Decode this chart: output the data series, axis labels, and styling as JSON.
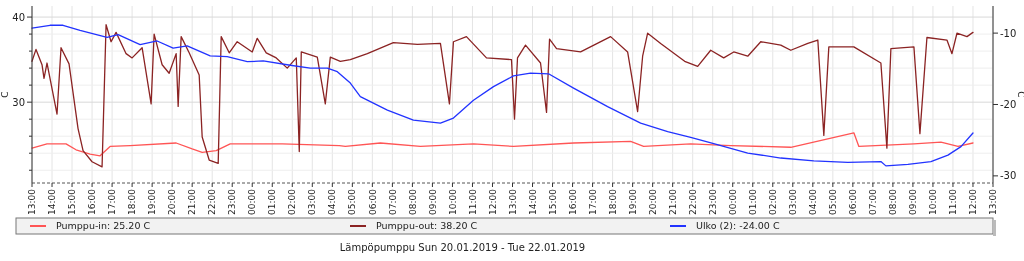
{
  "chart_data": {
    "type": "line",
    "title": "Lämpöpumppu Sun 20.01.2019 - Tue 22.01.2019",
    "ylabel": "C",
    "y2label": "C",
    "xlim": [
      "2019-01-20T13:00",
      "2019-01-22T13:00"
    ],
    "xticks": [
      {
        "value": "2019-01-20T13:00",
        "label": "13:00"
      },
      {
        "value": "2019-01-20T14:00",
        "label": "14:00"
      },
      {
        "value": "2019-01-20T15:00",
        "label": "15:00"
      },
      {
        "value": "2019-01-20T16:00",
        "label": "16:00"
      },
      {
        "value": "2019-01-20T17:00",
        "label": "17:00"
      },
      {
        "value": "2019-01-20T18:00",
        "label": "18:00"
      },
      {
        "value": "2019-01-20T19:00",
        "label": "19:00"
      },
      {
        "value": "2019-01-20T20:00",
        "label": "20:00"
      },
      {
        "value": "2019-01-20T21:00",
        "label": "21:00"
      },
      {
        "value": "2019-01-20T22:00",
        "label": "22:00"
      },
      {
        "value": "2019-01-20T23:00",
        "label": "23:00"
      },
      {
        "value": "2019-01-21T00:00",
        "label": "00:00"
      },
      {
        "value": "2019-01-21T01:00",
        "label": "01:00"
      },
      {
        "value": "2019-01-21T02:00",
        "label": "02:00"
      },
      {
        "value": "2019-01-21T03:00",
        "label": "03:00"
      },
      {
        "value": "2019-01-21T04:00",
        "label": "04:00"
      },
      {
        "value": "2019-01-21T05:00",
        "label": "05:00"
      },
      {
        "value": "2019-01-21T06:00",
        "label": "06:00"
      },
      {
        "value": "2019-01-21T07:00",
        "label": "07:00"
      },
      {
        "value": "2019-01-21T08:00",
        "label": "08:00"
      },
      {
        "value": "2019-01-21T09:00",
        "label": "09:00"
      },
      {
        "value": "2019-01-21T10:00",
        "label": "10:00"
      },
      {
        "value": "2019-01-21T11:00",
        "label": "11:00"
      },
      {
        "value": "2019-01-21T12:00",
        "label": "12:00"
      },
      {
        "value": "2019-01-21T13:00",
        "label": "13:00"
      },
      {
        "value": "2019-01-21T14:00",
        "label": "14:00"
      },
      {
        "value": "2019-01-21T15:00",
        "label": "15:00"
      },
      {
        "value": "2019-01-21T16:00",
        "label": "16:00"
      },
      {
        "value": "2019-01-21T17:00",
        "label": "17:00"
      },
      {
        "value": "2019-01-21T18:00",
        "label": "18:00"
      },
      {
        "value": "2019-01-21T19:00",
        "label": "19:00"
      },
      {
        "value": "2019-01-21T20:00",
        "label": "20:00"
      },
      {
        "value": "2019-01-21T21:00",
        "label": "21:00"
      },
      {
        "value": "2019-01-21T22:00",
        "label": "22:00"
      },
      {
        "value": "2019-01-21T23:00",
        "label": "23:00"
      },
      {
        "value": "2019-01-22T00:00",
        "label": "00:00"
      },
      {
        "value": "2019-01-22T01:00",
        "label": "01:00"
      },
      {
        "value": "2019-01-22T02:00",
        "label": "02:00"
      },
      {
        "value": "2019-01-22T03:00",
        "label": "03:00"
      },
      {
        "value": "2019-01-22T04:00",
        "label": "04:00"
      },
      {
        "value": "2019-01-22T05:00",
        "label": "05:00"
      },
      {
        "value": "2019-01-22T06:00",
        "label": "06:00"
      },
      {
        "value": "2019-01-22T07:00",
        "label": "07:00"
      },
      {
        "value": "2019-01-22T08:00",
        "label": "08:00"
      },
      {
        "value": "2019-01-22T09:00",
        "label": "09:00"
      },
      {
        "value": "2019-01-22T10:00",
        "label": "10:00"
      },
      {
        "value": "2019-01-22T11:00",
        "label": "11:00"
      },
      {
        "value": "2019-01-22T12:00",
        "label": "12:00"
      },
      {
        "value": "2019-01-22T13:00",
        "label": "13:00"
      }
    ],
    "ylim": [
      20.5,
      41.3
    ],
    "yticks": [
      {
        "value": 22,
        "label": null
      },
      {
        "value": 24,
        "label": null
      },
      {
        "value": 26,
        "label": null
      },
      {
        "value": 28,
        "label": null
      },
      30,
      {
        "value": 32,
        "label": null
      },
      {
        "value": 34,
        "label": null
      },
      {
        "value": 36,
        "label": null
      },
      {
        "value": 38,
        "label": null
      },
      40
    ],
    "y2lim": [
      -31,
      -6.2
    ],
    "y2ticks": [
      -10,
      -20,
      -30
    ],
    "grid": true,
    "legend": "bottom",
    "line_style": "solid",
    "marker": "none",
    "series": [
      {
        "name": "Pumppu-in: 25.20 C",
        "color": "#ff5555",
        "x": [
          "2019-01-20T13:00",
          "2019-01-20T13:45",
          "2019-01-20T14:42",
          "2019-01-20T15:12",
          "2019-01-20T15:54",
          "2019-01-20T16:24",
          "2019-01-20T16:54",
          "2019-01-20T17:54",
          "2019-01-20T20:12",
          "2019-01-20T21:00",
          "2019-01-20T21:30",
          "2019-01-20T22:12",
          "2019-01-20T22:54",
          "2019-01-21T01:30",
          "2019-01-21T04:21",
          "2019-01-21T04:39",
          "2019-01-21T06:24",
          "2019-01-21T08:24",
          "2019-01-21T11:03",
          "2019-01-21T13:03",
          "2019-01-21T16:03",
          "2019-01-21T18:54",
          "2019-01-21T19:33",
          "2019-01-21T21:54",
          "2019-01-21T23:54",
          "2019-01-22T02:54",
          "2019-01-22T06:03",
          "2019-01-22T06:18",
          "2019-01-22T09:03",
          "2019-01-22T10:24",
          "2019-01-22T11:15",
          "2019-01-22T12:00"
        ],
        "values": [
          24.6,
          25.1,
          25.1,
          24.4,
          23.9,
          23.7,
          24.8,
          24.9,
          25.2,
          24.5,
          24.1,
          24.3,
          25.1,
          25.1,
          24.9,
          24.8,
          25.2,
          24.8,
          25.1,
          24.8,
          25.2,
          25.4,
          24.8,
          25.1,
          24.9,
          24.7,
          26.4,
          24.8,
          25.1,
          25.3,
          24.8,
          25.2
        ]
      },
      {
        "name": "Pumppu-out: 38.20 C",
        "color": "#8b2323",
        "x": [
          "2019-01-20T13:00",
          "2019-01-20T13:12",
          "2019-01-20T13:30",
          "2019-01-20T13:36",
          "2019-01-20T13:45",
          "2019-01-20T14:15",
          "2019-01-20T14:27",
          "2019-01-20T14:51",
          "2019-01-20T15:18",
          "2019-01-20T15:33",
          "2019-01-20T16:00",
          "2019-01-20T16:30",
          "2019-01-20T16:42",
          "2019-01-20T16:57",
          "2019-01-20T17:12",
          "2019-01-20T17:42",
          "2019-01-20T18:00",
          "2019-01-20T18:30",
          "2019-01-20T18:57",
          "2019-01-20T19:06",
          "2019-01-20T19:30",
          "2019-01-20T19:51",
          "2019-01-20T20:12",
          "2019-01-20T20:18",
          "2019-01-20T20:27",
          "2019-01-20T20:51",
          "2019-01-20T21:21",
          "2019-01-20T21:30",
          "2019-01-20T21:51",
          "2019-01-20T22:18",
          "2019-01-20T22:27",
          "2019-01-20T22:51",
          "2019-01-20T23:15",
          "2019-01-21T00:00",
          "2019-01-21T00:15",
          "2019-01-21T00:42",
          "2019-01-21T01:12",
          "2019-01-21T01:45",
          "2019-01-21T02:12",
          "2019-01-21T02:21",
          "2019-01-21T02:27",
          "2019-01-21T03:15",
          "2019-01-21T03:39",
          "2019-01-21T03:54",
          "2019-01-21T04:24",
          "2019-01-21T04:54",
          "2019-01-21T05:45",
          "2019-01-21T07:03",
          "2019-01-21T08:15",
          "2019-01-21T09:24",
          "2019-01-21T09:51",
          "2019-01-21T10:03",
          "2019-01-21T10:42",
          "2019-01-21T11:42",
          "2019-01-21T12:57",
          "2019-01-21T13:06",
          "2019-01-21T13:15",
          "2019-01-21T13:39",
          "2019-01-21T14:24",
          "2019-01-21T14:42",
          "2019-01-21T14:51",
          "2019-01-21T15:12",
          "2019-01-21T16:24",
          "2019-01-21T17:54",
          "2019-01-21T18:45",
          "2019-01-21T19:15",
          "2019-01-21T19:30",
          "2019-01-21T19:45",
          "2019-01-21T20:24",
          "2019-01-21T21:36",
          "2019-01-21T22:15",
          "2019-01-21T22:54",
          "2019-01-21T23:33",
          "2019-01-22T00:03",
          "2019-01-22T00:45",
          "2019-01-22T01:24",
          "2019-01-22T02:24",
          "2019-01-22T02:54",
          "2019-01-22T03:45",
          "2019-01-22T04:15",
          "2019-01-22T04:33",
          "2019-01-22T04:48",
          "2019-01-22T06:03",
          "2019-01-22T07:24",
          "2019-01-22T07:42",
          "2019-01-22T07:54",
          "2019-01-22T09:03",
          "2019-01-22T09:21",
          "2019-01-22T09:42",
          "2019-01-22T10:42",
          "2019-01-22T10:57",
          "2019-01-22T11:12",
          "2019-01-22T11:42",
          "2019-01-22T12:00"
        ],
        "values": [
          34.8,
          36.2,
          34.4,
          32.8,
          34.6,
          28.6,
          36.4,
          34.5,
          26.9,
          24.3,
          23.0,
          22.4,
          39.1,
          37.1,
          38.2,
          35.7,
          35.2,
          36.4,
          29.8,
          38.0,
          34.4,
          33.4,
          35.7,
          29.5,
          37.7,
          35.8,
          33.2,
          25.9,
          23.2,
          22.8,
          37.7,
          35.8,
          37.1,
          35.9,
          37.5,
          35.8,
          35.2,
          34.0,
          35.2,
          24.2,
          35.9,
          35.3,
          29.8,
          35.3,
          34.8,
          35.0,
          35.7,
          37.0,
          36.8,
          36.9,
          29.8,
          37.1,
          37.7,
          35.2,
          35.0,
          28.0,
          35.2,
          36.7,
          34.6,
          28.8,
          37.4,
          36.3,
          35.9,
          37.7,
          35.9,
          28.9,
          35.4,
          38.1,
          36.9,
          34.8,
          34.2,
          36.1,
          35.2,
          35.9,
          35.4,
          37.1,
          36.7,
          36.1,
          36.9,
          37.3,
          26.1,
          36.5,
          36.5,
          34.6,
          24.6,
          36.3,
          36.5,
          26.3,
          37.6,
          37.3,
          35.7,
          38.1,
          37.7,
          38.2
        ]
      },
      {
        "name": "Ulko (2): -24.00 C",
        "color": "#2233ff",
        "axis": "y2",
        "x": [
          "2019-01-20T13:00",
          "2019-01-20T13:54",
          "2019-01-20T14:33",
          "2019-01-20T15:24",
          "2019-01-20T16:45",
          "2019-01-20T17:18",
          "2019-01-20T18:24",
          "2019-01-20T19:15",
          "2019-01-20T20:03",
          "2019-01-20T20:45",
          "2019-01-20T21:54",
          "2019-01-20T22:45",
          "2019-01-20T23:45",
          "2019-01-21T00:33",
          "2019-01-21T01:54",
          "2019-01-21T02:54",
          "2019-01-21T03:45",
          "2019-01-21T04:15",
          "2019-01-21T04:54",
          "2019-01-21T05:24",
          "2019-01-21T06:45",
          "2019-01-21T08:03",
          "2019-01-21T09:24",
          "2019-01-21T10:03",
          "2019-01-21T11:03",
          "2019-01-21T12:03",
          "2019-01-21T13:03",
          "2019-01-21T13:54",
          "2019-01-21T14:48",
          "2019-01-21T16:03",
          "2019-01-21T17:45",
          "2019-01-21T19:24",
          "2019-01-21T20:45",
          "2019-01-21T21:54",
          "2019-01-21T23:03",
          "2019-01-22T00:45",
          "2019-01-22T02:24",
          "2019-01-22T04:03",
          "2019-01-22T05:45",
          "2019-01-22T07:24",
          "2019-01-22T07:39",
          "2019-01-22T08:45",
          "2019-01-22T09:54",
          "2019-01-22T10:45",
          "2019-01-22T11:24",
          "2019-01-22T12:00"
        ],
        "values": [
          -9.3,
          -8.9,
          -8.9,
          -9.6,
          -10.6,
          -10.2,
          -11.6,
          -11.1,
          -12.1,
          -11.8,
          -13.2,
          -13.3,
          -14.0,
          -13.9,
          -14.5,
          -14.9,
          -14.9,
          -15.4,
          -17.0,
          -18.9,
          -20.8,
          -22.2,
          -22.6,
          -21.9,
          -19.4,
          -17.5,
          -16.0,
          -15.6,
          -15.7,
          -17.7,
          -20.3,
          -22.6,
          -23.8,
          -24.6,
          -25.5,
          -26.8,
          -27.5,
          -27.9,
          -28.1,
          -28.0,
          -28.6,
          -28.4,
          -28.0,
          -27.1,
          -25.9,
          -24.0
        ]
      }
    ]
  }
}
